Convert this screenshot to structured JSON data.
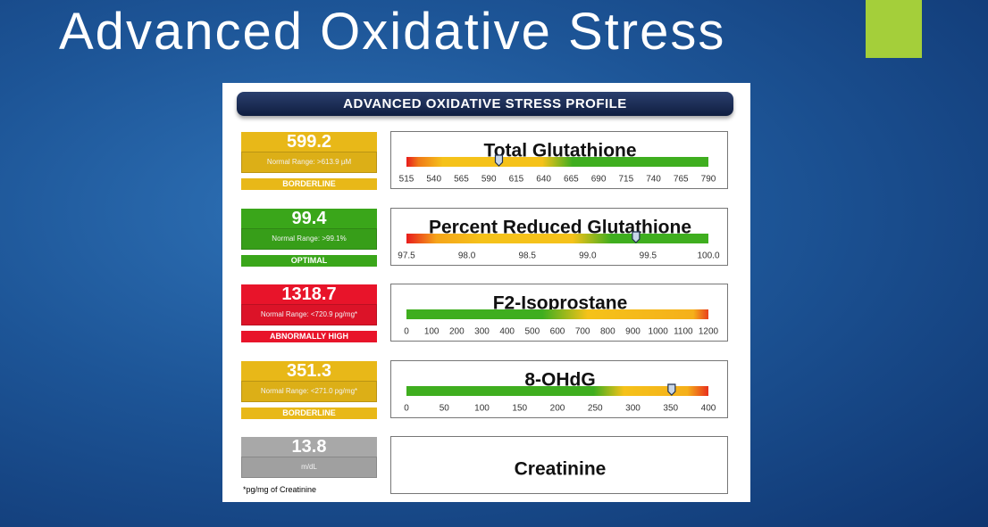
{
  "slide": {
    "title": "Advanced Oxidative Stress"
  },
  "report": {
    "header": "ADVANCED OXIDATIVE STRESS PROFILE",
    "rows": [
      {
        "value": 599.2,
        "range": "Normal Range: >613.9 µM",
        "status": "BORDERLINE",
        "color": "#e8b818",
        "gauge_title": "Total Glutathione",
        "ticks": [
          515,
          540,
          565,
          590,
          615,
          640,
          665,
          690,
          715,
          740,
          765,
          790
        ]
      },
      {
        "value": 99.4,
        "range": "Normal Range: >99.1%",
        "status": "OPTIMAL",
        "color": "#3aa61a",
        "gauge_title": "Percent Reduced Glutathione",
        "ticks": [
          97.5,
          {
            "value": 98,
            "label": "98.0"
          },
          98.5,
          {
            "value": 99,
            "label": "99.0"
          },
          99.5,
          {
            "value": 100,
            "label": "100.0"
          }
        ]
      },
      {
        "value": 1318.7,
        "range": "Normal Range: <720.9 pg/mg*",
        "status": "ABNORMALLY HIGH",
        "color": "#e8142a",
        "gauge_title": "F2-Isoprostane",
        "ticks": [
          0,
          100,
          200,
          300,
          400,
          500,
          600,
          700,
          800,
          900,
          1000,
          1100,
          1200
        ]
      },
      {
        "value": 351.3,
        "range": "Normal Range: <271.0 pg/mg*",
        "status": "BORDERLINE",
        "color": "#e8b818",
        "gauge_title": "8-OHdG",
        "ticks": [
          0,
          50,
          100,
          150,
          200,
          250,
          300,
          350,
          400
        ]
      },
      {
        "value": 13.8,
        "range": "m/dL",
        "color": "#a8a8a8",
        "gauge_title": "Creatinine"
      }
    ],
    "footnote": "*pg/mg of Creatinine"
  }
}
